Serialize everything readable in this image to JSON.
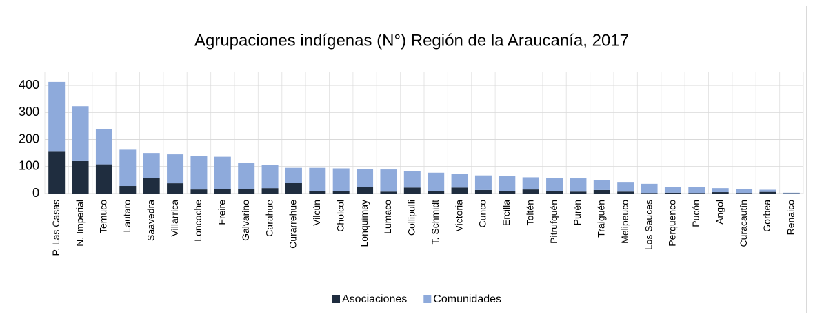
{
  "chart_data": {
    "type": "stacked_bar",
    "title": "Agrupaciones indígenas (N°) Región de la Araucanía, 2017",
    "categories": [
      "P. Las Casas",
      "N. Imperial",
      "Temuco",
      "Lautaro",
      "Saavedra",
      "Villarrica",
      "Loncoche",
      "Freire",
      "Galvarino",
      "Carahue",
      "Curarrehue",
      "Vilcún",
      "Cholcol",
      "Lonquimay",
      "Lumaco",
      "Collipulli",
      "T. Schmidt",
      "Victoria",
      "Cunco",
      "Ercilla",
      "Toltén",
      "Pitrufquén",
      "Purén",
      "Traiguén",
      "Melipeuco",
      "Los Sauces",
      "Perquenco",
      "Pucón",
      "Angol",
      "Curacautín",
      "Gorbea",
      "Renaico"
    ],
    "series": [
      {
        "name": "Asociaciones",
        "color": "#1f2d3f",
        "values": [
          157,
          120,
          108,
          28,
          57,
          38,
          15,
          17,
          17,
          20,
          40,
          8,
          10,
          23,
          7,
          22,
          10,
          22,
          13,
          10,
          15,
          8,
          7,
          13,
          7,
          2,
          3,
          2,
          5,
          2,
          6,
          1
        ]
      },
      {
        "name": "Comunidades",
        "color": "#8eaadb",
        "values": [
          256,
          203,
          130,
          134,
          93,
          107,
          125,
          119,
          96,
          87,
          55,
          87,
          83,
          67,
          82,
          61,
          67,
          51,
          54,
          54,
          45,
          49,
          49,
          36,
          36,
          34,
          22,
          22,
          15,
          14,
          8,
          2
        ]
      }
    ],
    "ylim": [
      0,
      400
    ],
    "yticks": [
      0,
      100,
      200,
      300,
      400
    ],
    "grid": true,
    "legend": "bottom"
  }
}
